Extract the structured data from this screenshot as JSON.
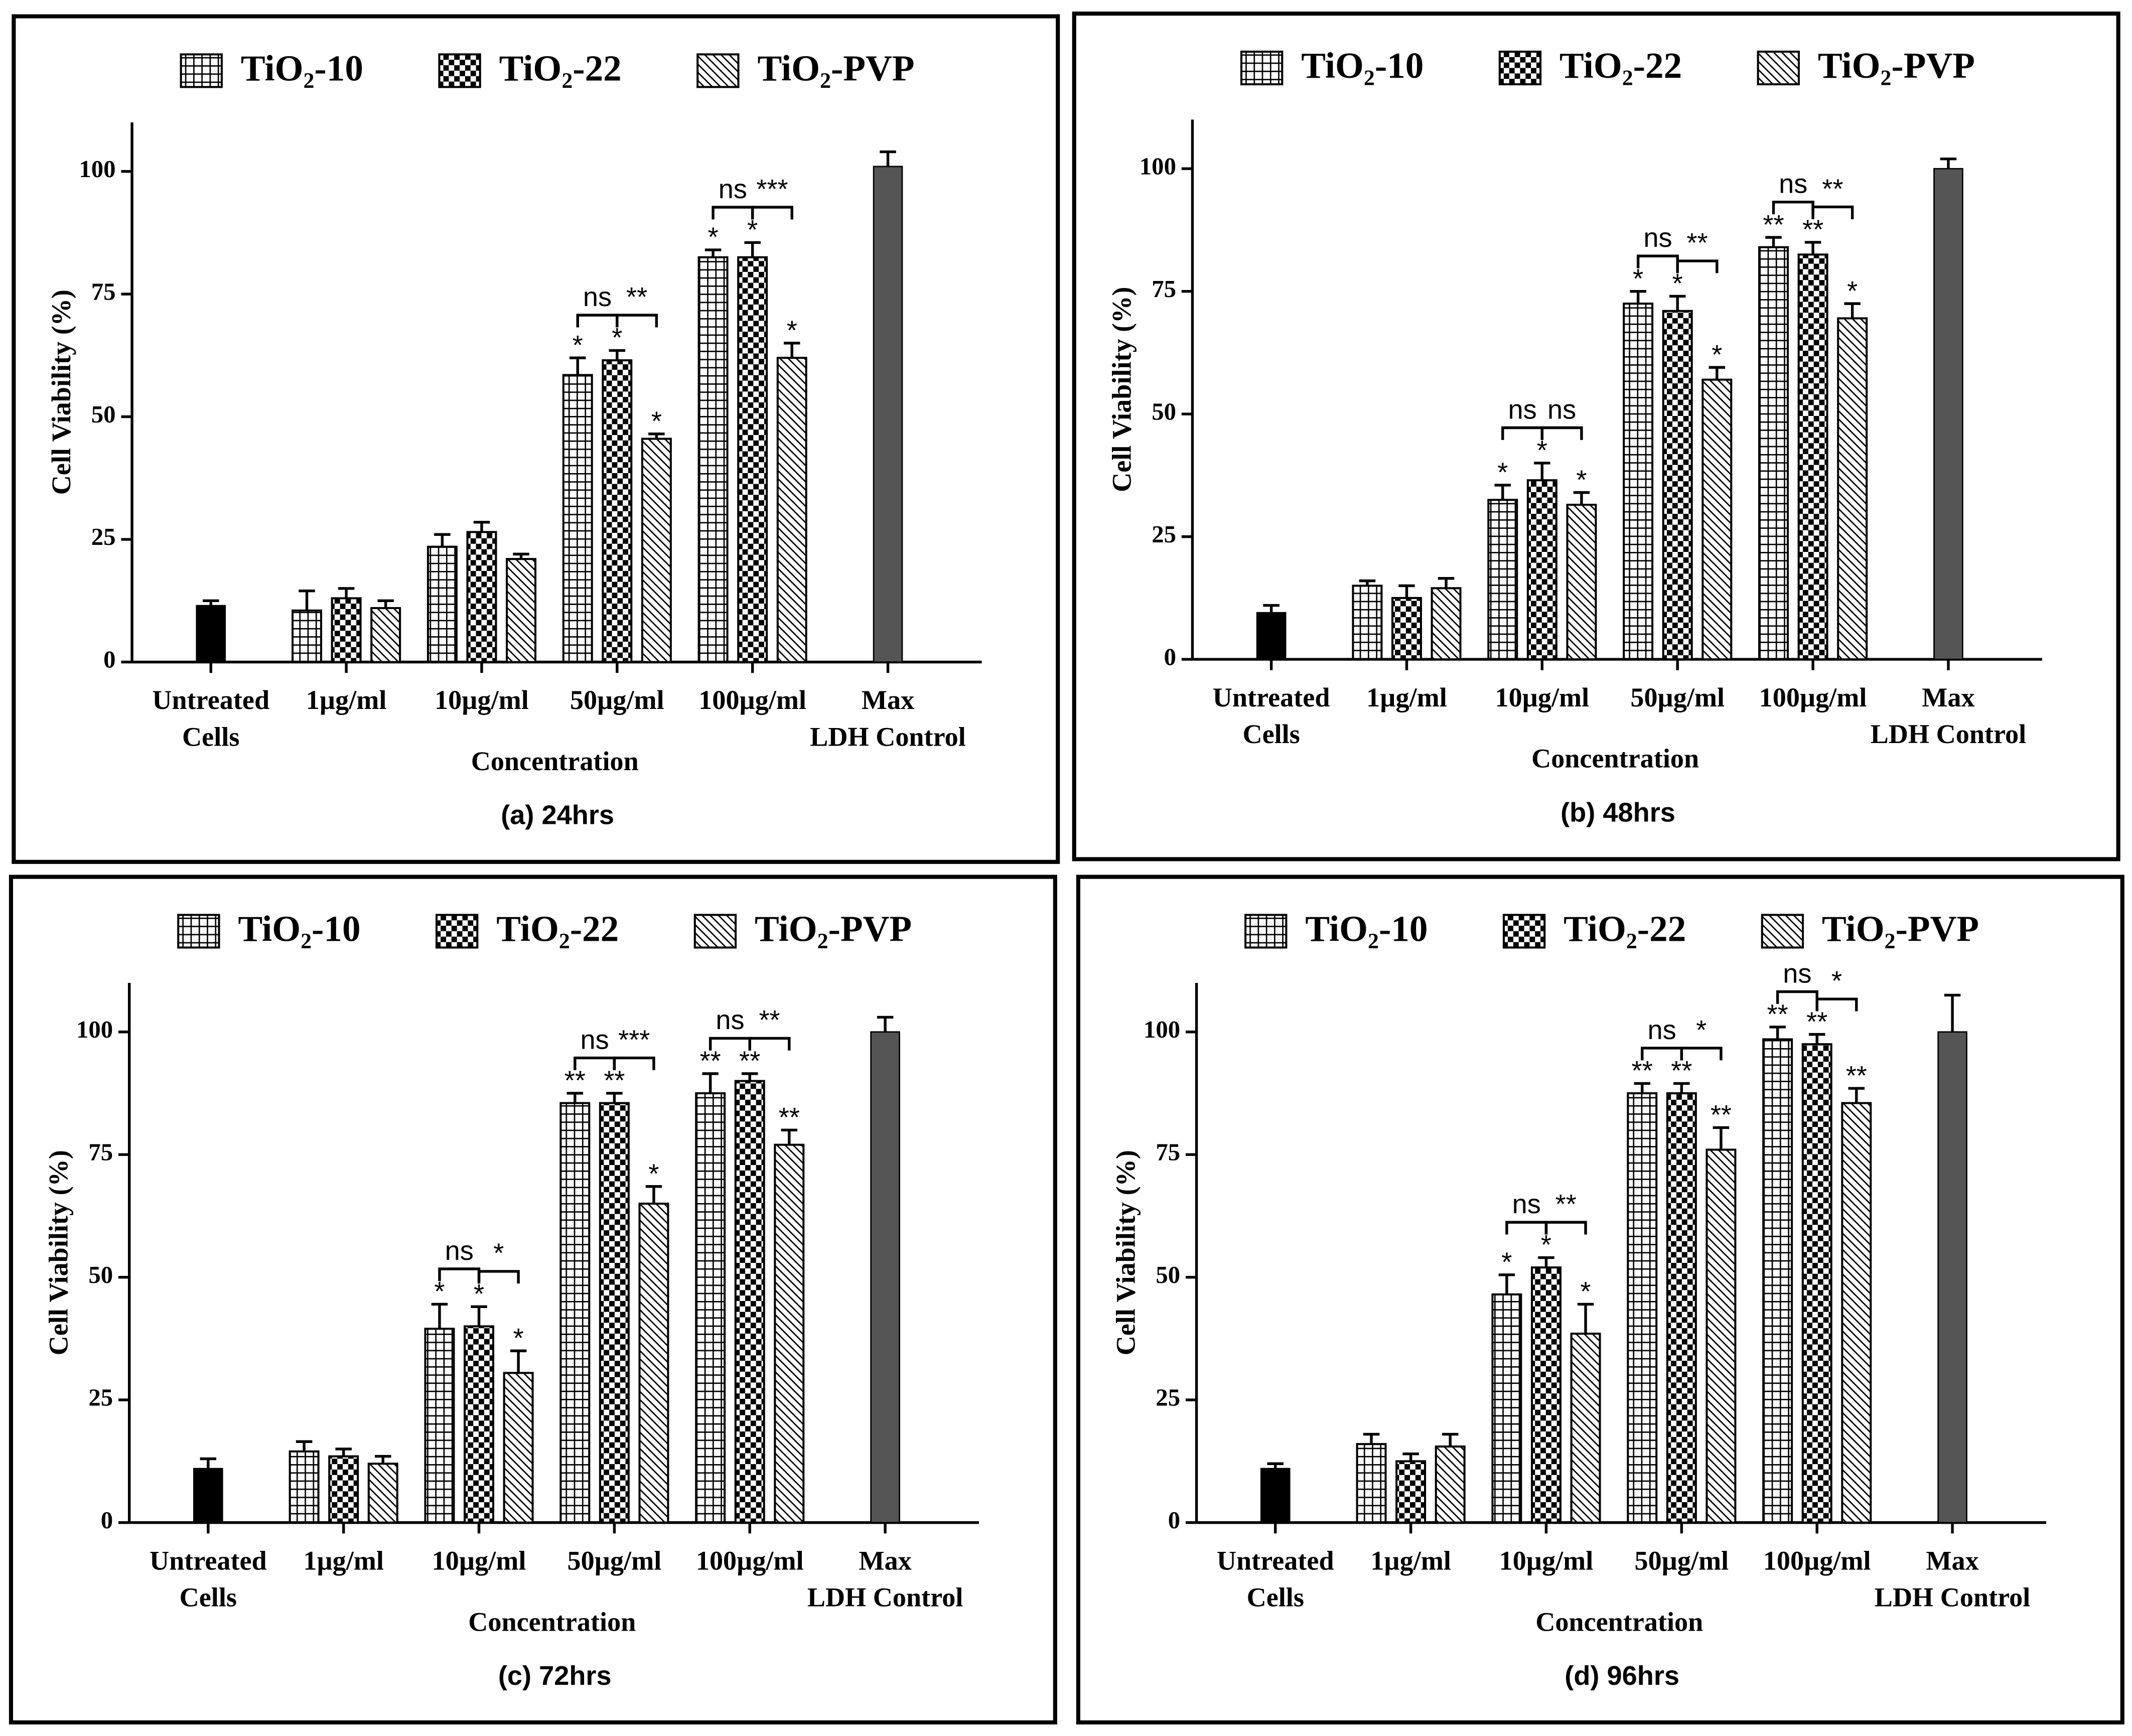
{
  "chart_data": [
    {
      "type": "bar",
      "title": "(a) 24hrs",
      "xlabel": "Concentration",
      "ylabel": "Cell Viability (%)",
      "categories": [
        [
          "Untreated",
          "Cells"
        ],
        [
          "1µg/ml"
        ],
        [
          "10µg/ml"
        ],
        [
          "50µg/ml"
        ],
        [
          "100µg/ml"
        ],
        [
          "Max",
          "LDH Control"
        ]
      ],
      "ylim": [
        0,
        110
      ],
      "yticks": [
        0,
        25,
        50,
        75,
        100
      ],
      "series": [
        {
          "name": "TiO₂-10",
          "color": "#000000",
          "pattern": "grid",
          "values": [
            null,
            10.5,
            23.5,
            58.5,
            82.5,
            null
          ],
          "errors": [
            null,
            4,
            2.5,
            3.5,
            1.5,
            null
          ],
          "annotations": [
            null,
            null,
            null,
            "*",
            "*",
            null
          ]
        },
        {
          "name": "TiO₂-22",
          "color": "#000000",
          "pattern": "checker",
          "values": [
            null,
            13,
            26.5,
            61.5,
            82.5,
            null
          ],
          "errors": [
            null,
            2,
            2,
            2,
            3,
            null
          ],
          "annotations": [
            null,
            null,
            null,
            "*",
            "*",
            null
          ]
        },
        {
          "name": "TiO₂-PVP",
          "color": "#000000",
          "pattern": "diagonal",
          "values": [
            null,
            11,
            21,
            45.5,
            62,
            null
          ],
          "errors": [
            null,
            1.5,
            1,
            1,
            3,
            null
          ],
          "annotations": [
            null,
            null,
            null,
            "*",
            "*",
            null
          ]
        }
      ],
      "controls": {
        "values": [
          11.5,
          null,
          null,
          null,
          null,
          101
        ],
        "errors": [
          1,
          null,
          null,
          null,
          null,
          3
        ],
        "colors": [
          "#000000",
          null,
          null,
          null,
          null,
          "#555555"
        ]
      },
      "brackets": [
        {
          "category": 3,
          "from": 0,
          "to": 1,
          "label": "ns"
        },
        {
          "category": 3,
          "from": 1,
          "to": 2,
          "label": "**"
        },
        {
          "category": 4,
          "from": 0,
          "to": 1,
          "label": "ns"
        },
        {
          "category": 4,
          "from": 1,
          "to": 2,
          "label": "***"
        }
      ]
    },
    {
      "type": "bar",
      "title": "(b) 48hrs",
      "xlabel": "Concentration",
      "ylabel": "Cell Viability (%)",
      "categories": [
        [
          "Untreated",
          "Cells"
        ],
        [
          "1µg/ml"
        ],
        [
          "10µg/ml"
        ],
        [
          "50µg/ml"
        ],
        [
          "100µg/ml"
        ],
        [
          "Max",
          "LDH Control"
        ]
      ],
      "ylim": [
        0,
        110
      ],
      "yticks": [
        0,
        25,
        50,
        75,
        100
      ],
      "series": [
        {
          "name": "TiO₂-10",
          "color": "#000000",
          "pattern": "grid",
          "values": [
            null,
            15,
            32.5,
            72.5,
            84,
            null
          ],
          "errors": [
            null,
            1,
            3,
            2.5,
            2,
            null
          ],
          "annotations": [
            null,
            null,
            "*",
            "*",
            "**",
            null
          ]
        },
        {
          "name": "TiO₂-22",
          "color": "#000000",
          "pattern": "checker",
          "values": [
            null,
            12.5,
            36.5,
            71,
            82.5,
            null
          ],
          "errors": [
            null,
            2.5,
            3.5,
            3,
            2.5,
            null
          ],
          "annotations": [
            null,
            null,
            "*",
            "*",
            "**",
            null
          ]
        },
        {
          "name": "TiO₂-PVP",
          "color": "#000000",
          "pattern": "diagonal",
          "values": [
            null,
            14.5,
            31.5,
            57,
            69.5,
            null
          ],
          "errors": [
            null,
            2,
            2.5,
            2.5,
            3,
            null
          ],
          "annotations": [
            null,
            null,
            "*",
            "*",
            "*",
            null
          ]
        }
      ],
      "controls": {
        "values": [
          9.5,
          null,
          null,
          null,
          null,
          100
        ],
        "errors": [
          1.5,
          null,
          null,
          null,
          null,
          2
        ],
        "colors": [
          "#000000",
          null,
          null,
          null,
          null,
          "#555555"
        ]
      },
      "brackets": [
        {
          "category": 2,
          "from": 0,
          "to": 1,
          "label": "ns"
        },
        {
          "category": 2,
          "from": 1,
          "to": 2,
          "label": "ns"
        },
        {
          "category": 3,
          "from": 0,
          "to": 1,
          "label": "ns"
        },
        {
          "category": 3,
          "from": 1,
          "to": 2,
          "label": "**"
        },
        {
          "category": 4,
          "from": 0,
          "to": 1,
          "label": "ns"
        },
        {
          "category": 4,
          "from": 1,
          "to": 2,
          "label": "**"
        }
      ]
    },
    {
      "type": "bar",
      "title": "(c) 72hrs",
      "xlabel": "Concentration",
      "ylabel": "Cell Viability (%)",
      "categories": [
        [
          "Untreated",
          "Cells"
        ],
        [
          "1µg/ml"
        ],
        [
          "10µg/ml"
        ],
        [
          "50µg/ml"
        ],
        [
          "100µg/ml"
        ],
        [
          "Max",
          "LDH Control"
        ]
      ],
      "ylim": [
        0,
        110
      ],
      "yticks": [
        0,
        25,
        50,
        75,
        100
      ],
      "series": [
        {
          "name": "TiO₂-10",
          "color": "#000000",
          "pattern": "grid",
          "values": [
            null,
            14.5,
            39.5,
            85.5,
            87.5,
            null
          ],
          "errors": [
            null,
            2,
            5,
            2,
            4,
            null
          ],
          "annotations": [
            null,
            null,
            "*",
            "**",
            "**",
            null
          ]
        },
        {
          "name": "TiO₂-22",
          "color": "#000000",
          "pattern": "checker",
          "values": [
            null,
            13.5,
            40,
            85.5,
            90,
            null
          ],
          "errors": [
            null,
            1.5,
            4,
            2,
            1.5,
            null
          ],
          "annotations": [
            null,
            null,
            "*",
            "**",
            "**",
            null
          ]
        },
        {
          "name": "TiO₂-PVP",
          "color": "#000000",
          "pattern": "diagonal",
          "values": [
            null,
            12,
            30.5,
            65,
            77,
            null
          ],
          "errors": [
            null,
            1.5,
            4.5,
            3.5,
            3,
            null
          ],
          "annotations": [
            null,
            null,
            "*",
            "*",
            "**",
            null
          ]
        }
      ],
      "controls": {
        "values": [
          11,
          null,
          null,
          null,
          null,
          100
        ],
        "errors": [
          2,
          null,
          null,
          null,
          null,
          3
        ],
        "colors": [
          "#000000",
          null,
          null,
          null,
          null,
          "#555555"
        ]
      },
      "brackets": [
        {
          "category": 2,
          "from": 0,
          "to": 1,
          "label": "ns"
        },
        {
          "category": 2,
          "from": 1,
          "to": 2,
          "label": "*"
        },
        {
          "category": 3,
          "from": 0,
          "to": 1,
          "label": "ns"
        },
        {
          "category": 3,
          "from": 1,
          "to": 2,
          "label": "***"
        },
        {
          "category": 4,
          "from": 0,
          "to": 1,
          "label": "ns"
        },
        {
          "category": 4,
          "from": 1,
          "to": 2,
          "label": "**"
        }
      ]
    },
    {
      "type": "bar",
      "title": "(d) 96hrs",
      "xlabel": "Concentration",
      "ylabel": "Cell Viability (%)",
      "categories": [
        [
          "Untreated",
          "Cells"
        ],
        [
          "1µg/ml"
        ],
        [
          "10µg/ml"
        ],
        [
          "50µg/ml"
        ],
        [
          "100µg/ml"
        ],
        [
          "Max",
          "LDH Control"
        ]
      ],
      "ylim": [
        0,
        110
      ],
      "yticks": [
        0,
        25,
        50,
        75,
        100
      ],
      "series": [
        {
          "name": "TiO₂-10",
          "color": "#000000",
          "pattern": "grid",
          "values": [
            null,
            16,
            46.5,
            87.5,
            98.5,
            null
          ],
          "errors": [
            null,
            2,
            4,
            2,
            2.5,
            null
          ],
          "annotations": [
            null,
            null,
            "*",
            "**",
            "**",
            null
          ]
        },
        {
          "name": "TiO₂-22",
          "color": "#000000",
          "pattern": "checker",
          "values": [
            null,
            12.5,
            52,
            87.5,
            97.5,
            null
          ],
          "errors": [
            null,
            1.5,
            2,
            2,
            2,
            null
          ],
          "annotations": [
            null,
            null,
            "*",
            "**",
            "**",
            null
          ]
        },
        {
          "name": "TiO₂-PVP",
          "color": "#000000",
          "pattern": "diagonal",
          "values": [
            null,
            15.5,
            38.5,
            76,
            85.5,
            null
          ],
          "errors": [
            null,
            2.5,
            6,
            4.5,
            3,
            null
          ],
          "annotations": [
            null,
            null,
            "*",
            "**",
            "**",
            null
          ]
        }
      ],
      "controls": {
        "values": [
          11,
          null,
          null,
          null,
          null,
          100
        ],
        "errors": [
          1,
          null,
          null,
          null,
          null,
          7.5
        ],
        "colors": [
          "#000000",
          null,
          null,
          null,
          null,
          "#555555"
        ]
      },
      "brackets": [
        {
          "category": 2,
          "from": 0,
          "to": 1,
          "label": "ns"
        },
        {
          "category": 2,
          "from": 1,
          "to": 2,
          "label": "**"
        },
        {
          "category": 3,
          "from": 0,
          "to": 1,
          "label": "ns"
        },
        {
          "category": 3,
          "from": 1,
          "to": 2,
          "label": "*"
        },
        {
          "category": 4,
          "from": 0,
          "to": 1,
          "label": "ns"
        },
        {
          "category": 4,
          "from": 1,
          "to": 2,
          "label": "*"
        }
      ]
    }
  ]
}
